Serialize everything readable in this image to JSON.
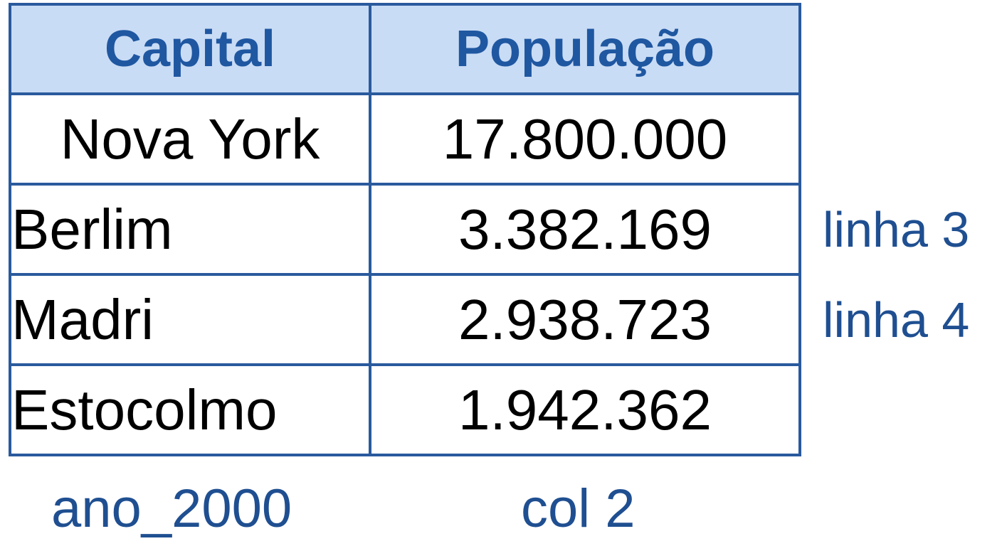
{
  "table": {
    "headers": [
      "Capital",
      "População"
    ],
    "rows": [
      {
        "capital": "Nova York",
        "populacao": "17.800.000"
      },
      {
        "capital": "Berlim",
        "populacao": "3.382.169"
      },
      {
        "capital": "Madri",
        "populacao": "2.938.723"
      },
      {
        "capital": "Estocolmo",
        "populacao": "1.942.362"
      }
    ]
  },
  "annotations": {
    "row_3": "linha 3",
    "row_4": "linha 4",
    "table_name": "ano_2000",
    "column_2": "col 2"
  },
  "colors": {
    "border": "#2a5a9e",
    "header_background": "#c9dcf5",
    "header_text": "#1f57a1",
    "annotation_text": "#1f4f91"
  }
}
